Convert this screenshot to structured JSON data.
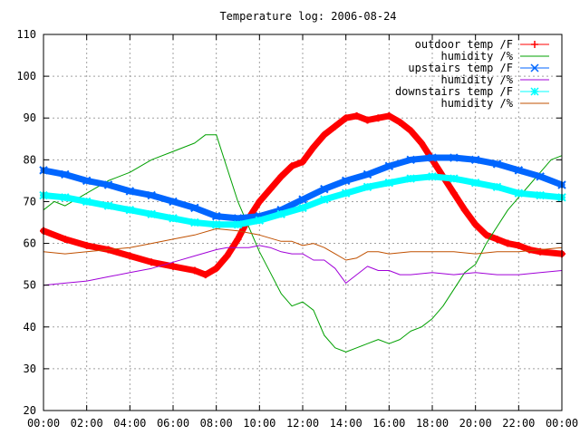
{
  "chart_data": {
    "type": "line",
    "title": "Temperature log: 2006-08-24",
    "xlabel": "",
    "ylabel": "",
    "xlim": [
      0,
      24
    ],
    "ylim": [
      20,
      110
    ],
    "grid": true,
    "legend_position": "top-right",
    "x_ticks": [
      "00:00",
      "02:00",
      "04:00",
      "06:00",
      "08:00",
      "10:00",
      "12:00",
      "14:00",
      "16:00",
      "18:00",
      "20:00",
      "22:00",
      "00:00"
    ],
    "y_ticks": [
      "20",
      "30",
      "40",
      "50",
      "60",
      "70",
      "80",
      "90",
      "100",
      "110"
    ],
    "series": [
      {
        "name": "outdoor temp /F",
        "color": "#ff0000",
        "marker": "plus",
        "thick": true,
        "x": [
          0,
          1,
          2,
          3,
          4,
          5,
          6,
          7,
          7.5,
          8,
          8.5,
          9,
          9.5,
          10,
          10.5,
          11,
          11.5,
          12,
          12.5,
          13,
          13.5,
          14,
          14.5,
          15,
          15.5,
          16,
          16.5,
          17,
          17.5,
          18,
          18.5,
          19,
          19.5,
          20,
          20.5,
          21,
          21.5,
          22,
          22.5,
          23,
          24
        ],
        "y": [
          63,
          61,
          59.5,
          58.5,
          57,
          55.5,
          54.5,
          53.5,
          52.5,
          54,
          57,
          61,
          66,
          70,
          73,
          76,
          78.5,
          79.5,
          83,
          86,
          88,
          90,
          90.5,
          89.5,
          90,
          90.5,
          89,
          87,
          84,
          80,
          76,
          72,
          68,
          64.5,
          62,
          61,
          60,
          59.5,
          58.5,
          58,
          57.5
        ]
      },
      {
        "name": "humidity /%",
        "color": "#00a000",
        "marker": "none",
        "thick": false,
        "x": [
          0,
          0.5,
          1,
          2,
          3,
          4,
          5,
          6,
          7,
          7.5,
          8,
          8.5,
          9,
          9.5,
          10,
          10.5,
          11,
          11.5,
          12,
          12.5,
          13,
          13.5,
          14,
          14.5,
          15,
          15.5,
          16,
          16.5,
          17,
          17.5,
          18,
          18.5,
          19,
          19.5,
          20,
          20.5,
          21,
          21.5,
          22,
          22.5,
          23,
          23.5,
          24
        ],
        "y": [
          68,
          70,
          69,
          72,
          75,
          77,
          80,
          82,
          84,
          86,
          86,
          78,
          70,
          64,
          58,
          53,
          48,
          45,
          46,
          44,
          38,
          35,
          34,
          35,
          36,
          37,
          36,
          37,
          39,
          40,
          42,
          45,
          49,
          53,
          55,
          60,
          64,
          68,
          71,
          74,
          77,
          80,
          81
        ]
      },
      {
        "name": "upstairs temp /F",
        "color": "#0066ff",
        "marker": "x",
        "thick": true,
        "x": [
          0,
          1,
          2,
          3,
          4,
          5,
          6,
          7,
          8,
          9,
          10,
          11,
          12,
          13,
          14,
          15,
          16,
          17,
          18,
          19,
          20,
          21,
          22,
          23,
          24
        ],
        "y": [
          77.5,
          76.5,
          75,
          74,
          72.5,
          71.5,
          70,
          68.5,
          66.5,
          66,
          66.5,
          68,
          70.5,
          73,
          75,
          76.5,
          78.5,
          80,
          80.5,
          80.5,
          80,
          79,
          77.5,
          76,
          74
        ]
      },
      {
        "name": "humidity /%",
        "color": "#a000d8",
        "marker": "none",
        "thick": false,
        "x": [
          0,
          1,
          2,
          3,
          4,
          5,
          6,
          7,
          8,
          8.5,
          9,
          9.5,
          10,
          10.5,
          11,
          11.5,
          12,
          12.5,
          13,
          13.5,
          14,
          14.5,
          15,
          15.5,
          16,
          16.5,
          17,
          18,
          19,
          20,
          21,
          22,
          23,
          24
        ],
        "y": [
          50,
          50.5,
          51,
          52,
          53,
          54,
          55.5,
          57,
          58.5,
          59,
          59,
          59,
          59.5,
          59,
          58,
          57.5,
          57.5,
          56,
          56,
          54,
          50.5,
          52.5,
          54.5,
          53.5,
          53.5,
          52.5,
          52.5,
          53,
          52.5,
          53,
          52.5,
          52.5,
          53,
          53.5
        ]
      },
      {
        "name": "downstairs temp /F",
        "color": "#00ffff",
        "marker": "star",
        "thick": true,
        "x": [
          0,
          1,
          2,
          3,
          4,
          5,
          6,
          7,
          8,
          9,
          10,
          11,
          12,
          13,
          14,
          15,
          16,
          17,
          18,
          19,
          20,
          21,
          22,
          23,
          24
        ],
        "y": [
          71.5,
          71,
          70,
          69,
          68,
          67,
          66,
          65,
          64.5,
          64.5,
          65.5,
          67,
          68.5,
          70.5,
          72,
          73.5,
          74.5,
          75.5,
          76,
          75.5,
          74.5,
          73.5,
          72,
          71.5,
          71
        ]
      },
      {
        "name": "humidity /%",
        "color": "#c05000",
        "marker": "none",
        "thick": false,
        "x": [
          0,
          1,
          2,
          3,
          4,
          5,
          6,
          7,
          8,
          9,
          10,
          11,
          11.5,
          12,
          12.5,
          13,
          13.5,
          14,
          14.5,
          15,
          15.5,
          16,
          17,
          18,
          19,
          20,
          21,
          22,
          23,
          24
        ],
        "y": [
          58,
          57.5,
          58,
          58.5,
          59,
          60,
          61,
          62,
          63.5,
          63,
          62,
          60.5,
          60.5,
          59.5,
          60,
          59,
          57.5,
          56,
          56.5,
          58,
          58,
          57.5,
          58,
          58,
          58,
          57.5,
          58,
          58,
          58.5,
          59
        ]
      }
    ]
  }
}
